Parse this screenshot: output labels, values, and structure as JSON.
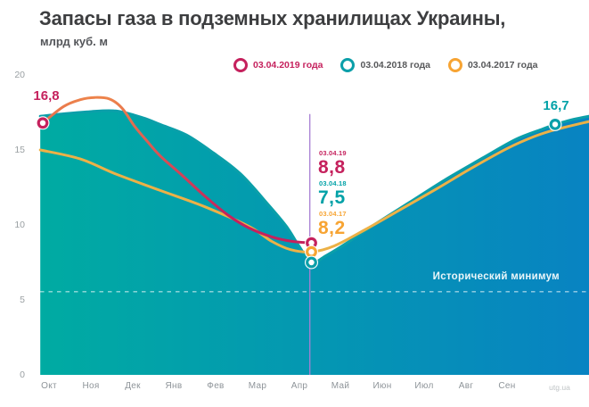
{
  "title": "Запасы газа в подземных хранилищах Украины,",
  "subtitle": "млрд куб. м",
  "watermark": "utg.ua",
  "colors": {
    "crimson": "#c5215d",
    "crimson_grad_top": "#f08a4a",
    "teal": "#0b9fa9",
    "teal_text": "#00a1a7",
    "orange": "#f7a433",
    "line_yellow": "#ecb147",
    "area_left": "#00aba2",
    "area_right": "#0883c2",
    "purple": "#a77fd3",
    "title_color": "#3d3e40",
    "axis_text": "#8e9499",
    "legend_text": "#57585a",
    "white_dash": "rgba(255,255,255,0.6)"
  },
  "legend": [
    {
      "label": "03.04.2019 года",
      "color_key": "crimson",
      "text_color_key": "crimson"
    },
    {
      "label": "03.04.2018 года",
      "color_key": "teal",
      "text_color_key": "legend_text"
    },
    {
      "label": "03.04.2017 года",
      "color_key": "orange",
      "text_color_key": "legend_text"
    }
  ],
  "annotations": {
    "start_label": "16,8",
    "end_label": "16,7",
    "april_rows": [
      {
        "date": "03.04.19",
        "value": "8,8",
        "color_key": "crimson"
      },
      {
        "date": "03.04.18",
        "value": "7,5",
        "color_key": "teal_text"
      },
      {
        "date": "03.04.17",
        "value": "8,2",
        "color_key": "orange"
      }
    ],
    "historical_min_label": "Исторический минимум"
  },
  "chart_data": {
    "type": "area",
    "unit": "млрд куб. м",
    "x_axis": {
      "months": [
        "Окт",
        "Ноя",
        "Дек",
        "Янв",
        "Фев",
        "Мар",
        "Апр",
        "Май",
        "Июн",
        "Июл",
        "Авг",
        "Сен"
      ],
      "note": "season Oct through Sep, month index 0-11"
    },
    "y_axis": {
      "ticks": [
        20,
        15,
        10,
        5,
        0
      ],
      "ylim": [
        0,
        20
      ],
      "grid": false
    },
    "key_values": {
      "start_2019_oct": 16.8,
      "end_2018_sep": 16.7,
      "apr3_2019": 8.8,
      "apr3_2018": 7.5,
      "apr3_2017": 8.2,
      "historical_min_level": 5.55
    },
    "april_line_month": 6.26,
    "april_line_top_value": 17.4,
    "series": [
      {
        "name": "03.04.2018 года",
        "key": "y2018",
        "style": "area",
        "color_key": "teal",
        "points": [
          [
            -0.21,
            17.25
          ],
          [
            0.3,
            17.4
          ],
          [
            0.95,
            17.55
          ],
          [
            1.6,
            17.6
          ],
          [
            2.25,
            17.15
          ],
          [
            2.67,
            16.7
          ],
          [
            3.3,
            16.0
          ],
          [
            3.95,
            14.8
          ],
          [
            4.6,
            13.4
          ],
          [
            5.25,
            11.4
          ],
          [
            5.7,
            9.9
          ],
          [
            6.0,
            8.6
          ],
          [
            6.3,
            7.5
          ],
          [
            6.65,
            7.95
          ],
          [
            7.15,
            8.8
          ],
          [
            7.8,
            10.0
          ],
          [
            8.65,
            11.5
          ],
          [
            9.5,
            13.0
          ],
          [
            10.4,
            14.45
          ],
          [
            11.2,
            15.7
          ],
          [
            11.85,
            16.4
          ],
          [
            12.15,
            16.7
          ],
          [
            12.6,
            17.05
          ],
          [
            13.05,
            17.3
          ]
        ]
      },
      {
        "name": "03.04.2017 года",
        "key": "y2017",
        "style": "line",
        "color_key": "line_yellow",
        "points": [
          [
            -0.21,
            15.0
          ],
          [
            0.75,
            14.4
          ],
          [
            1.6,
            13.4
          ],
          [
            2.67,
            12.3
          ],
          [
            3.75,
            11.2
          ],
          [
            4.8,
            9.9
          ],
          [
            5.35,
            8.9
          ],
          [
            5.8,
            8.35
          ],
          [
            6.3,
            8.2
          ],
          [
            6.85,
            8.6
          ],
          [
            7.6,
            9.7
          ],
          [
            8.45,
            11.05
          ],
          [
            9.3,
            12.4
          ],
          [
            10.15,
            13.8
          ],
          [
            11.0,
            15.1
          ],
          [
            11.65,
            15.9
          ],
          [
            12.15,
            16.35
          ],
          [
            13.05,
            16.95
          ]
        ]
      },
      {
        "name": "03.04.2019 года",
        "key": "y2019",
        "style": "line",
        "color_key": "crimson_gradient",
        "points": [
          [
            -0.15,
            16.8
          ],
          [
            0.35,
            17.9
          ],
          [
            0.75,
            18.35
          ],
          [
            1.1,
            18.5
          ],
          [
            1.45,
            18.4
          ],
          [
            1.75,
            17.8
          ],
          [
            2.05,
            16.6
          ],
          [
            2.35,
            15.6
          ],
          [
            2.67,
            14.6
          ],
          [
            3.2,
            13.3
          ],
          [
            3.75,
            11.9
          ],
          [
            4.3,
            10.65
          ],
          [
            4.8,
            9.8
          ],
          [
            5.35,
            9.2
          ],
          [
            5.85,
            8.9
          ],
          [
            6.3,
            8.8
          ]
        ]
      }
    ],
    "markers": [
      {
        "m": -0.15,
        "v": 16.8,
        "color_key": "crimson",
        "name": "marker-2019-start"
      },
      {
        "m": 12.15,
        "v": 16.7,
        "color_key": "teal",
        "name": "marker-2018-end"
      },
      {
        "m": 6.3,
        "v": 8.8,
        "color_key": "crimson",
        "name": "marker-2019-april"
      },
      {
        "m": 6.3,
        "v": 8.2,
        "color_key": "orange",
        "name": "marker-2017-april"
      },
      {
        "m": 6.3,
        "v": 7.5,
        "color_key": "teal",
        "name": "marker-2018-april"
      }
    ]
  }
}
